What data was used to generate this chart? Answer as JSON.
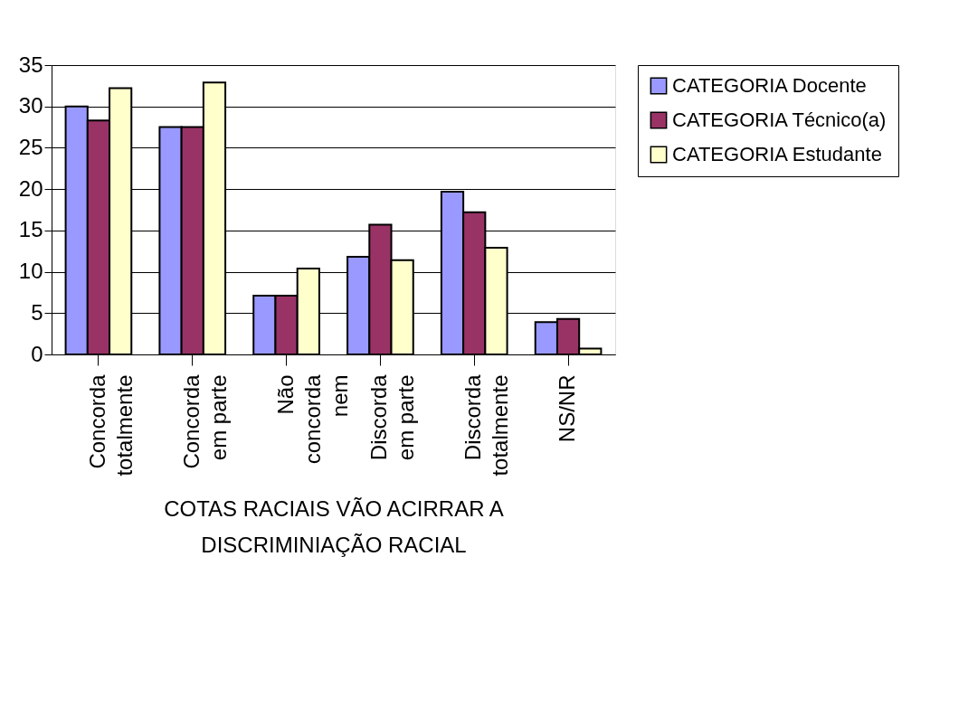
{
  "chart_data": {
    "type": "bar",
    "xlabel": "COTAS RACIAIS VÃO ACIRRAR A\nDISCRIMINIAÇÃO RACIAL",
    "categories": [
      "Concorda\ntotalmente",
      "Concorda\nem parte",
      "Não\nconcorda\nnem",
      "Discorda\nem parte",
      "Discorda\ntotalmente",
      "NS/NR"
    ],
    "series": [
      {
        "name": "CATEGORIA Docente",
        "color": "#9999ff",
        "values": [
          30,
          27.5,
          7.1,
          11.8,
          19.7,
          3.9
        ]
      },
      {
        "name": "CATEGORIA Técnico(a)",
        "color": "#993366",
        "values": [
          28.3,
          27.5,
          7.1,
          15.7,
          17.2,
          4.3
        ]
      },
      {
        "name": "CATEGORIA Estudante",
        "color": "#ffffcc",
        "values": [
          32.2,
          32.9,
          10.4,
          11.4,
          12.9,
          0.7
        ]
      }
    ],
    "ylim": [
      0,
      35
    ],
    "yticks": [
      0,
      5,
      10,
      15,
      20,
      25,
      30,
      35
    ],
    "grid": "y",
    "legend": "right"
  }
}
